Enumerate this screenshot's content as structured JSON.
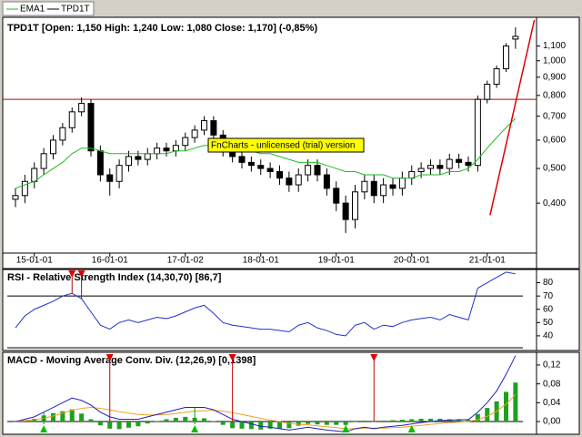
{
  "chart_data": [
    {
      "type": "candlestick",
      "name": "TPD1T",
      "color": "#000000",
      "title": "TPD1T [Open: 1,150  High: 1,240  Low: 1,080  Close: 1,170] (-0,85%)",
      "watermark": "FnCharts - unlicensed (trial) version",
      "categories": [
        null,
        null,
        "15-01-01",
        null,
        null,
        null,
        null,
        null,
        null,
        null,
        "16-01-01",
        null,
        null,
        null,
        null,
        null,
        null,
        null,
        "17-01-02",
        null,
        null,
        null,
        null,
        null,
        null,
        null,
        "18-01-01",
        null,
        null,
        null,
        null,
        null,
        null,
        null,
        "19-01-01",
        null,
        null,
        null,
        null,
        null,
        null,
        null,
        "20-01-01",
        null,
        null,
        null,
        null,
        null,
        null,
        null,
        "21-01-01",
        null,
        null,
        null
      ],
      "open": [
        0.41,
        0.42,
        0.46,
        0.5,
        0.55,
        0.6,
        0.65,
        0.72,
        0.76,
        0.56,
        0.48,
        0.46,
        0.51,
        0.54,
        0.53,
        0.55,
        0.57,
        0.56,
        0.58,
        0.61,
        0.64,
        0.68,
        0.62,
        0.56,
        0.54,
        0.52,
        0.51,
        0.5,
        0.49,
        0.47,
        0.45,
        0.48,
        0.51,
        0.48,
        0.44,
        0.4,
        0.36,
        0.43,
        0.46,
        0.42,
        0.45,
        0.44,
        0.47,
        0.49,
        0.5,
        0.51,
        0.5,
        0.53,
        0.52,
        0.51,
        0.78,
        0.86,
        0.95,
        1.15
      ],
      "high": [
        0.44,
        0.48,
        0.52,
        0.57,
        0.62,
        0.67,
        0.74,
        0.79,
        0.78,
        0.58,
        0.5,
        0.53,
        0.56,
        0.56,
        0.57,
        0.59,
        0.59,
        0.6,
        0.63,
        0.66,
        0.7,
        0.7,
        0.64,
        0.58,
        0.56,
        0.54,
        0.53,
        0.52,
        0.51,
        0.49,
        0.5,
        0.53,
        0.53,
        0.5,
        0.46,
        0.42,
        0.45,
        0.48,
        0.48,
        0.47,
        0.47,
        0.49,
        0.51,
        0.52,
        0.53,
        0.53,
        0.55,
        0.55,
        0.54,
        0.8,
        0.88,
        0.97,
        1.12,
        1.24
      ],
      "low": [
        0.39,
        0.4,
        0.44,
        0.48,
        0.53,
        0.58,
        0.63,
        0.7,
        0.54,
        0.46,
        0.42,
        0.44,
        0.49,
        0.51,
        0.51,
        0.53,
        0.54,
        0.54,
        0.56,
        0.59,
        0.62,
        0.6,
        0.54,
        0.52,
        0.5,
        0.49,
        0.48,
        0.47,
        0.45,
        0.43,
        0.43,
        0.46,
        0.46,
        0.42,
        0.38,
        0.33,
        0.34,
        0.41,
        0.4,
        0.4,
        0.42,
        0.42,
        0.45,
        0.47,
        0.48,
        0.48,
        0.48,
        0.5,
        0.49,
        0.49,
        0.76,
        0.84,
        0.93,
        1.08
      ],
      "close": [
        0.42,
        0.46,
        0.5,
        0.55,
        0.6,
        0.65,
        0.72,
        0.76,
        0.56,
        0.48,
        0.46,
        0.51,
        0.54,
        0.53,
        0.55,
        0.57,
        0.56,
        0.58,
        0.61,
        0.64,
        0.68,
        0.62,
        0.56,
        0.54,
        0.52,
        0.51,
        0.5,
        0.49,
        0.47,
        0.45,
        0.48,
        0.51,
        0.48,
        0.44,
        0.4,
        0.36,
        0.43,
        0.46,
        0.42,
        0.45,
        0.44,
        0.47,
        0.49,
        0.5,
        0.51,
        0.5,
        0.53,
        0.52,
        0.51,
        0.78,
        0.86,
        0.95,
        1.1,
        1.17
      ],
      "series": [
        {
          "name": "EMA1",
          "color": "#22bb22",
          "values": [
            0.44,
            0.45,
            0.46,
            0.48,
            0.5,
            0.52,
            0.55,
            0.57,
            0.57,
            0.56,
            0.55,
            0.55,
            0.55,
            0.55,
            0.55,
            0.55,
            0.55,
            0.56,
            0.56,
            0.57,
            0.58,
            0.58,
            0.58,
            0.57,
            0.57,
            0.56,
            0.55,
            0.55,
            0.54,
            0.53,
            0.52,
            0.52,
            0.52,
            0.51,
            0.5,
            0.49,
            0.49,
            0.48,
            0.48,
            0.48,
            0.47,
            0.47,
            0.47,
            0.48,
            0.48,
            0.48,
            0.49,
            0.49,
            0.5,
            0.53,
            0.57,
            0.61,
            0.65,
            0.69
          ]
        }
      ],
      "hline": 0.78,
      "hline_color": "#c00000",
      "trend_line": {
        "x": [
          50.3,
          55
        ],
        "y": [
          0.37,
          1.3
        ],
        "color": "#e00000"
      },
      "log_scale": true,
      "ylim": [
        0.29,
        1.3
      ],
      "yticks": [
        {
          "value": 0.4,
          "label": "0,400"
        },
        {
          "value": 0.5,
          "label": "0,500"
        },
        {
          "value": 0.6,
          "label": "0,600"
        },
        {
          "value": 0.7,
          "label": "0,700"
        },
        {
          "value": 0.8,
          "label": "0,800"
        },
        {
          "value": 0.9,
          "label": "0,900"
        },
        {
          "value": 1.0,
          "label": "1,000"
        },
        {
          "value": 1.1,
          "label": "1,100"
        }
      ]
    },
    {
      "type": "line",
      "title": "RSI - Relative Strength Index (14,30,70) [86,7]",
      "color": "#2233cc",
      "values": [
        46,
        55,
        60,
        63,
        66,
        70,
        72,
        68,
        58,
        48,
        45,
        50,
        52,
        50,
        52,
        54,
        53,
        55,
        58,
        61,
        63,
        57,
        50,
        48,
        47,
        46,
        45,
        45,
        44,
        43,
        48,
        50,
        46,
        44,
        41,
        40,
        48,
        50,
        45,
        48,
        47,
        50,
        52,
        53,
        54,
        52,
        56,
        54,
        52,
        76,
        80,
        84,
        88,
        86.7
      ],
      "levels": [
        70
      ],
      "sell_signals": [
        6,
        7
      ],
      "ylim": [
        31,
        90
      ],
      "yticks": [
        40,
        50,
        60,
        70,
        80
      ]
    },
    {
      "type": "macd",
      "title": "MACD - Moving Average Conv. Div. (12,26,9) [0,1398]",
      "macd": {
        "color": "#2020c0",
        "values": [
          0.0,
          0.005,
          0.01,
          0.02,
          0.03,
          0.04,
          0.05,
          0.045,
          0.035,
          0.02,
          0.01,
          0.005,
          0.005,
          0.005,
          0.01,
          0.015,
          0.02,
          0.025,
          0.03,
          0.03,
          0.03,
          0.025,
          0.015,
          0.005,
          0.0,
          -0.005,
          -0.01,
          -0.012,
          -0.015,
          -0.018,
          -0.015,
          -0.012,
          -0.015,
          -0.018,
          -0.02,
          -0.022,
          -0.015,
          -0.012,
          -0.015,
          -0.012,
          -0.01,
          -0.008,
          -0.005,
          -0.002,
          0.0,
          0.002,
          0.003,
          0.004,
          0.004,
          0.02,
          0.04,
          0.065,
          0.1,
          0.1398
        ]
      },
      "signal": {
        "color": "#f0a020",
        "values": [
          0.0,
          0.002,
          0.004,
          0.007,
          0.012,
          0.018,
          0.024,
          0.028,
          0.03,
          0.028,
          0.025,
          0.021,
          0.018,
          0.015,
          0.014,
          0.014,
          0.015,
          0.017,
          0.02,
          0.022,
          0.023,
          0.024,
          0.022,
          0.019,
          0.015,
          0.011,
          0.007,
          0.003,
          0.0,
          -0.004,
          -0.006,
          -0.007,
          -0.009,
          -0.011,
          -0.013,
          -0.015,
          -0.015,
          -0.014,
          -0.014,
          -0.014,
          -0.013,
          -0.012,
          -0.01,
          -0.008,
          -0.006,
          -0.004,
          -0.002,
          -0.001,
          0.0,
          0.004,
          0.011,
          0.022,
          0.037,
          0.057
        ]
      },
      "histogram": {
        "color": "#20a020",
        "values": [
          0,
          0.003,
          0.006,
          0.013,
          0.018,
          0.022,
          0.026,
          0.017,
          0.005,
          -0.008,
          -0.015,
          -0.016,
          -0.013,
          -0.01,
          -0.004,
          0.001,
          0.005,
          0.008,
          0.01,
          0.008,
          0.007,
          0.001,
          -0.007,
          -0.014,
          -0.015,
          -0.016,
          -0.017,
          -0.015,
          -0.015,
          -0.014,
          -0.009,
          -0.005,
          -0.006,
          -0.007,
          -0.007,
          -0.007,
          0.0,
          0.002,
          -0.001,
          0.002,
          0.003,
          0.004,
          0.005,
          0.006,
          0.006,
          0.006,
          0.005,
          0.005,
          0.004,
          0.016,
          0.029,
          0.043,
          0.063,
          0.0828
        ]
      },
      "buy_signals": [
        3,
        19,
        35,
        42
      ],
      "sell_signals": [
        10,
        23,
        38
      ],
      "ylim": [
        -0.025,
        0.145
      ],
      "yticks": [
        {
          "value": 0,
          "label": "0,00"
        },
        {
          "value": 0.04,
          "label": "0,04"
        },
        {
          "value": 0.08,
          "label": "0,08"
        },
        {
          "value": 0.12,
          "label": "0,12"
        }
      ]
    }
  ]
}
